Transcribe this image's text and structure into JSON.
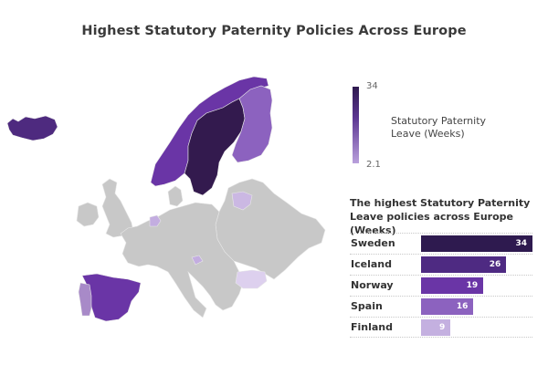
{
  "title": "Highest Statutory Paternity Policies Across Europe",
  "legend": {
    "max": "34",
    "min": "2.1",
    "label": "Statutory Paternity Leave (Weeks)",
    "color_max": "#2e1a4f",
    "color_min": "#b9a0dc"
  },
  "bar_chart": {
    "title": "The highest Statutory Paternity Leave policies across Europe (Weeks)",
    "bars": [
      {
        "label": "Sweden",
        "value": "34",
        "color": "#2e1a4f"
      },
      {
        "label": "Iceland",
        "value": "26",
        "color": "#4e2a82"
      },
      {
        "label": "Norway",
        "value": "19",
        "color": "#6a35a6"
      },
      {
        "label": "Spain",
        "value": "16",
        "color": "#8c62bf"
      },
      {
        "label": "Finland",
        "value": "9",
        "color": "#c4b0e0"
      }
    ]
  },
  "map_colors": {
    "sweden": "#331a4e",
    "iceland": "#4e2a7f",
    "norway": "#6a35a6",
    "spain": "#6a35a6",
    "finland": "#8c62bf",
    "portugal": "#a88ac8",
    "lithuania": "#cbb8e3",
    "netherlands": "#c3ade0",
    "slovenia": "#c3ade0",
    "bulgaria": "#ddd0ee",
    "no_data": "#c8c8c8"
  },
  "chart_data": [
    {
      "type": "heatmap",
      "title": "Highest Statutory Paternity Policies Across Europe",
      "legend": {
        "label": "Statutory Paternity Leave (Weeks)",
        "min": 2.1,
        "max": 34
      },
      "regions": [
        {
          "name": "Sweden",
          "value": 34
        },
        {
          "name": "Iceland",
          "value": 26
        },
        {
          "name": "Norway",
          "value": 19
        },
        {
          "name": "Spain",
          "value": 16
        },
        {
          "name": "Finland",
          "value": 9
        }
      ]
    },
    {
      "type": "bar",
      "orientation": "horizontal",
      "title": "The highest Statutory Paternity Leave policies across Europe (Weeks)",
      "categories": [
        "Sweden",
        "Iceland",
        "Norway",
        "Spain",
        "Finland"
      ],
      "values": [
        34,
        26,
        19,
        16,
        9
      ],
      "xlabel": "",
      "ylabel": "",
      "xlim": [
        0,
        34
      ],
      "grid": false,
      "data_labels": true
    }
  ]
}
